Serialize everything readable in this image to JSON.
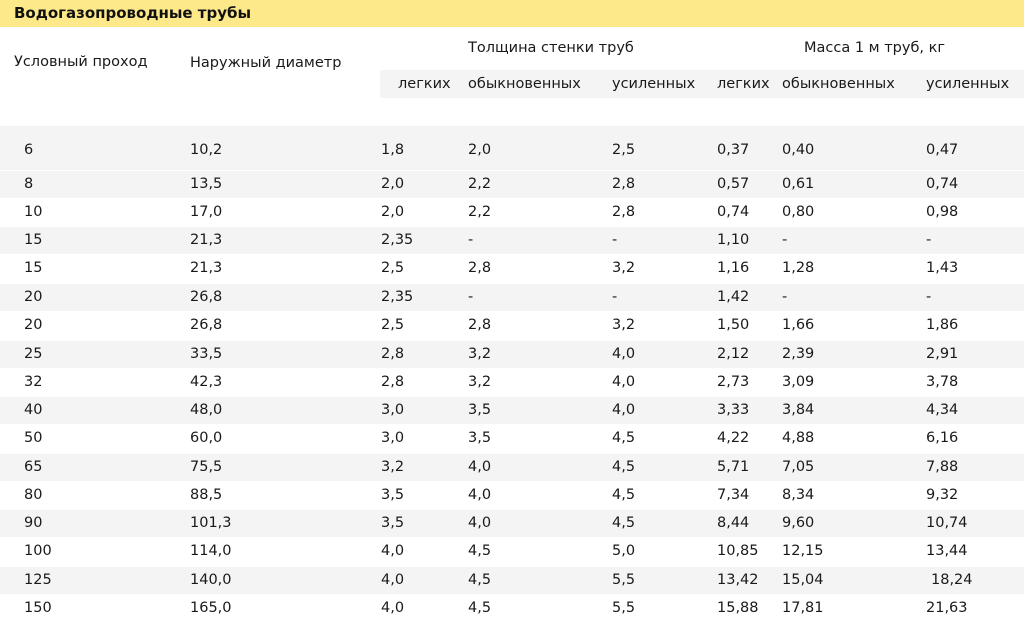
{
  "title": "Водогазопроводные трубы",
  "headers": {
    "nominal_bore": "Условный проход",
    "outer_diameter": "Наружный диаметр",
    "wall_thickness": "Толщина стенки труб",
    "mass": "Масса 1 м труб, кг",
    "sub": [
      "легких",
      "обыкновенных",
      "усиленных",
      "легких",
      "обыкновенных",
      "усиленных"
    ]
  },
  "rows": [
    [
      "6",
      "10,2",
      "1,8",
      "2,0",
      "2,5",
      "0,37",
      "0,40",
      "0,47"
    ],
    [
      "8",
      "13,5",
      "2,0",
      "2,2",
      "2,8",
      "0,57",
      "0,61",
      "0,74"
    ],
    [
      "10",
      "17,0",
      "2,0",
      "2,2",
      "2,8",
      "0,74",
      "0,80",
      "0,98"
    ],
    [
      "15",
      "21,3",
      "2,35",
      "-",
      "-",
      "1,10",
      "-",
      "-"
    ],
    [
      "15",
      "21,3",
      "2,5",
      "2,8",
      "3,2",
      "1,16",
      "1,28",
      "1,43"
    ],
    [
      "20",
      "26,8",
      "2,35",
      "-",
      "-",
      "1,42",
      "-",
      "-"
    ],
    [
      "20",
      "26,8",
      "2,5",
      "2,8",
      "3,2",
      "1,50",
      "1,66",
      "1,86"
    ],
    [
      "25",
      "33,5",
      "2,8",
      "3,2",
      "4,0",
      "2,12",
      "2,39",
      "2,91"
    ],
    [
      "32",
      "42,3",
      "2,8",
      "3,2",
      "4,0",
      "2,73",
      "3,09",
      "3,78"
    ],
    [
      "40",
      "48,0",
      "3,0",
      "3,5",
      "4,0",
      "3,33",
      "3,84",
      "4,34"
    ],
    [
      "50",
      "60,0",
      "3,0",
      "3,5",
      "4,5",
      "4,22",
      "4,88",
      "6,16"
    ],
    [
      "65",
      "75,5",
      "3,2",
      "4,0",
      "4,5",
      "5,71",
      "7,05",
      "7,88"
    ],
    [
      "80",
      "88,5",
      "3,5",
      "4,0",
      "4,5",
      "7,34",
      "8,34",
      "9,32"
    ],
    [
      "90",
      "101,3",
      "3,5",
      "4,0",
      "4,5",
      "8,44",
      "9,60",
      "10,74"
    ],
    [
      "100",
      "114,0",
      "4,0",
      "4,5",
      "5,0",
      "10,85",
      "12,15",
      "13,44"
    ],
    [
      "125",
      "140,0",
      "4,0",
      "4,5",
      "5,5",
      "13,42",
      "15,04",
      "18,24"
    ],
    [
      "150",
      "165,0",
      "4,0",
      "4,5",
      "5,5",
      "15,88",
      "17,81",
      "21,63"
    ]
  ]
}
